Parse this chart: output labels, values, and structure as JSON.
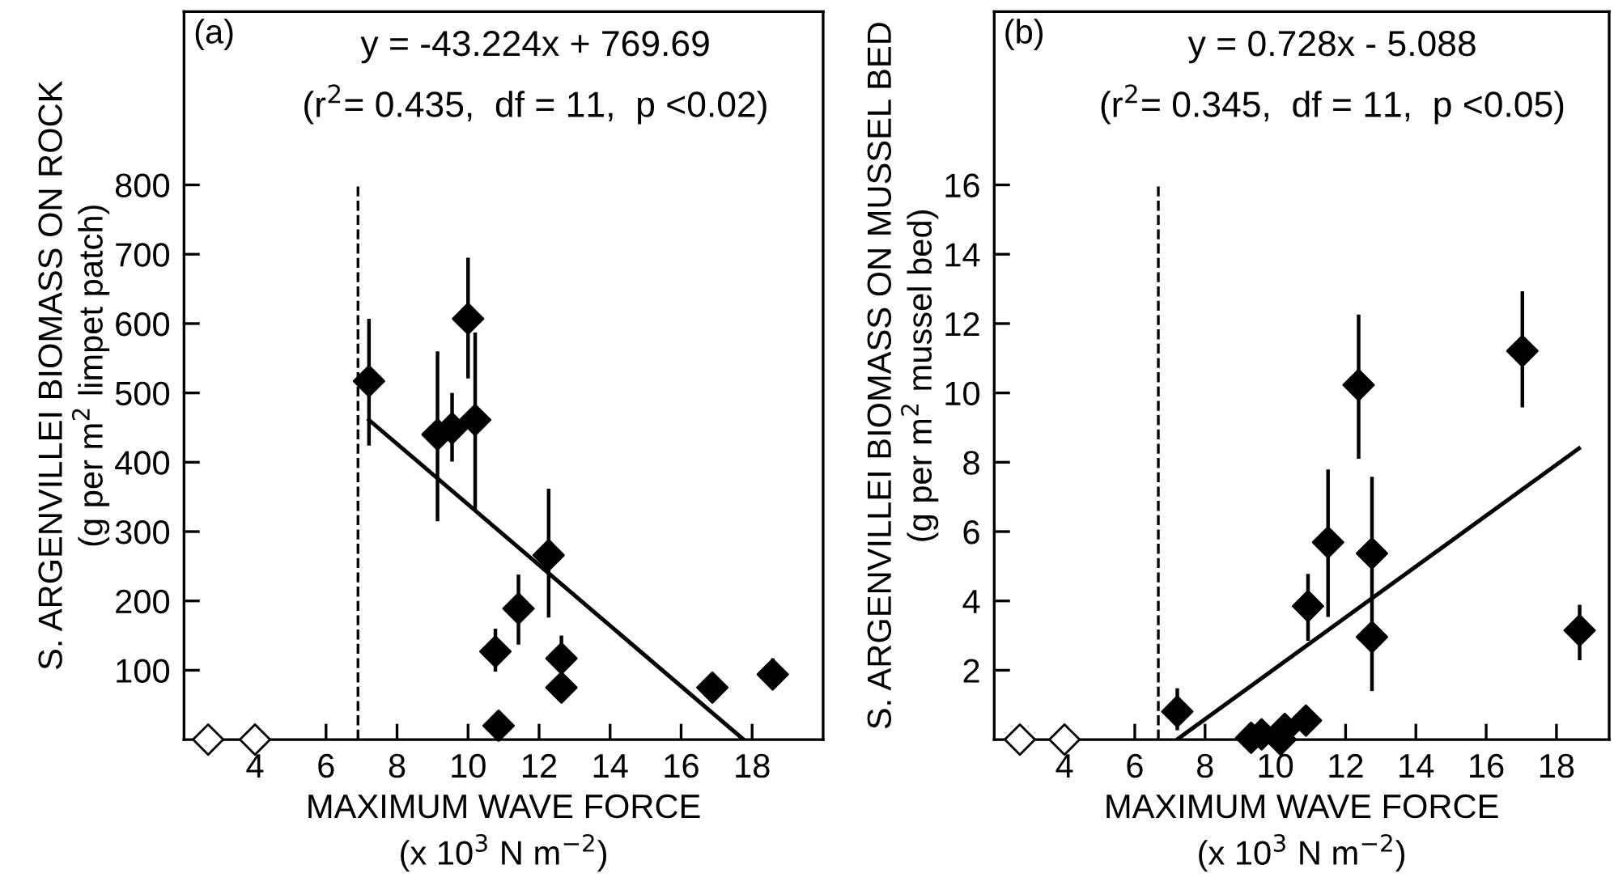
{
  "chart_data": [
    {
      "type": "scatter",
      "xlabel": "MAXIMUM WAVE FORCE\n(x 10$^{3}$ N m$^{−2}$)",
      "ylabel": "S. ARGENVILLEI BIOMASS ON ROCK\n(g per m$^{2}$ limpet patch)",
      "annotations": [
        "(a)",
        "y = -43.224x + 769.69",
        "(r$^{2}$= 0.435,  df = 11,  p <0.02)"
      ],
      "xlim": [
        2,
        20
      ],
      "xticks": [
        4,
        6,
        8,
        10,
        12,
        14,
        16,
        18
      ],
      "ylim": [
        0,
        1050
      ],
      "yticks": [
        100,
        200,
        300,
        400,
        500,
        600,
        700,
        800
      ],
      "grid": false,
      "legend": false,
      "marker": "diamond",
      "ref_lines": [
        {
          "axis": "x",
          "value": 6.9,
          "color": "#000000",
          "line_style": "dashed"
        }
      ],
      "series": [
        {
          "color": "#000000",
          "x": [
            7.21,
            9.14,
            9.55,
            10.0,
            10.2,
            12.27,
            11.42,
            10.77,
            12.63,
            12.63,
            10.86,
            16.88,
            18.58
          ],
          "values": [
            517,
            440,
            449,
            607,
            461,
            266,
            189,
            127,
            117,
            75,
            20,
            75,
            94
          ],
          "errors": [
            [
              424,
              607
            ],
            [
              315,
              560
            ],
            [
              401,
              500
            ],
            [
              521,
              695
            ],
            [
              331,
              587
            ],
            [
              176,
              362
            ],
            [
              137,
              238
            ],
            [
              98,
              160
            ],
            [
              95,
              150
            ],
            null,
            null,
            null,
            [
              75,
              117
            ]
          ]
        },
        {
          "color": "#ffffff",
          "x": [
            2.68,
            4.0
          ],
          "values": [
            0,
            0
          ]
        },
        {
          "type": "line",
          "color": "#000000",
          "marker": "none",
          "x": [
            7.21,
            17.76
          ],
          "values": [
            461,
            0
          ]
        }
      ]
    },
    {
      "type": "scatter",
      "xlabel": "MAXIMUM WAVE FORCE\n(x 10$^{3}$ N m$^{−2}$)",
      "ylabel": "S. ARGENVILLEI BIOMASS ON MUSSEL BED\n(g per m$^{2}$ mussel bed)",
      "annotations": [
        "(b)",
        "y = 0.728x - 5.088",
        "(r$^{2}$= 0.345,  df = 11,  p <0.05)"
      ],
      "xlim": [
        2,
        19.5
      ],
      "xticks": [
        4,
        6,
        8,
        10,
        12,
        14,
        16,
        18
      ],
      "ylim": [
        0,
        21
      ],
      "yticks": [
        2,
        4,
        6,
        8,
        10,
        12,
        14,
        16
      ],
      "grid": false,
      "legend": false,
      "marker": "diamond",
      "ref_lines": [
        {
          "axis": "x",
          "value": 6.67,
          "color": "#000000",
          "line_style": "dashed"
        }
      ],
      "series": [
        {
          "color": "#000000",
          "x": [
            7.21,
            9.31,
            9.61,
            10.15,
            10.27,
            10.87,
            10.93,
            11.5,
            12.37,
            12.75,
            12.75,
            17.03,
            18.66
          ],
          "values": [
            0.81,
            0.05,
            0.15,
            0,
            0.31,
            0.55,
            3.85,
            5.69,
            10.23,
            5.37,
            2.96,
            11.21,
            3.15
          ],
          "errors": [
            [
              0.27,
              1.48
            ],
            null,
            null,
            null,
            null,
            null,
            [
              2.85,
              4.78
            ],
            [
              3.54,
              7.79
            ],
            [
              8.1,
              12.26
            ],
            [
              4.2,
              7.58
            ],
            [
              1.4,
              4.2
            ],
            [
              9.58,
              12.93
            ],
            [
              2.29,
              3.89
            ]
          ]
        },
        {
          "color": "#ffffff",
          "x": [
            2.73,
            4.0
          ],
          "values": [
            0,
            0
          ]
        },
        {
          "type": "line",
          "color": "#000000",
          "marker": "none",
          "x": [
            7.24,
            18.64
          ],
          "values": [
            0.03,
            8.4
          ]
        }
      ]
    }
  ]
}
